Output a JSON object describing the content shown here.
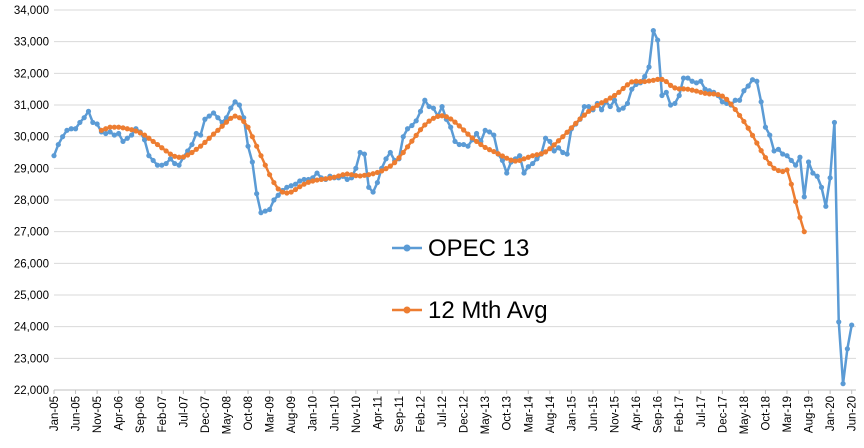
{
  "chart_data": {
    "type": "line",
    "title": "",
    "xlabel": "",
    "ylabel": "",
    "ylim": [
      22000,
      34000
    ],
    "yticks": [
      22000,
      23000,
      24000,
      25000,
      26000,
      27000,
      28000,
      29000,
      30000,
      31000,
      32000,
      33000,
      34000
    ],
    "ytick_labels": [
      "22,000",
      "23,000",
      "24,000",
      "25,000",
      "26,000",
      "27,000",
      "28,000",
      "29,000",
      "30,000",
      "31,000",
      "32,000",
      "33,000",
      "34,000"
    ],
    "grid": "horizontal",
    "legend_position": "center",
    "x_start": "Jan-05",
    "x_end": "Jul-20",
    "x_tick_labels": [
      "Jan-05",
      "Jun-05",
      "Nov-05",
      "Apr-06",
      "Sep-06",
      "Feb-07",
      "Jul-07",
      "Dec-07",
      "May-08",
      "Oct-08",
      "Mar-09",
      "Aug-09",
      "Jan-10",
      "Jun-10",
      "Nov-10",
      "Apr-11",
      "Sep-11",
      "Feb-12",
      "Jul-12",
      "Dec-12",
      "May-13",
      "Oct-13",
      "Mar-14",
      "Aug-14",
      "Jan-15",
      "Jun-15",
      "Nov-15",
      "Apr-16",
      "Sep-16",
      "Feb-17",
      "Jul-17",
      "Dec-17",
      "May-18",
      "Oct-18",
      "Mar-19",
      "Aug-19",
      "Jan-20",
      "Jun-20"
    ],
    "series": [
      {
        "name": "OPEC 13",
        "color": "#5B9BD5",
        "start": "Jan-05",
        "values": [
          29400,
          29750,
          30000,
          30200,
          30250,
          30250,
          30450,
          30600,
          30800,
          30450,
          30400,
          30150,
          30100,
          30150,
          30050,
          30100,
          29850,
          29950,
          30050,
          30250,
          30150,
          29900,
          29400,
          29250,
          29100,
          29100,
          29150,
          29300,
          29150,
          29100,
          29350,
          29550,
          29750,
          30100,
          30050,
          30550,
          30650,
          30750,
          30600,
          30450,
          30600,
          30900,
          31100,
          31000,
          30600,
          29700,
          29200,
          28200,
          27600,
          27650,
          27700,
          28000,
          28150,
          28300,
          28400,
          28450,
          28500,
          28600,
          28650,
          28650,
          28700,
          28850,
          28700,
          28650,
          28750,
          28700,
          28700,
          28750,
          28650,
          28700,
          29000,
          29500,
          29450,
          28400,
          28250,
          28550,
          29000,
          29300,
          29500,
          29250,
          29300,
          30000,
          30250,
          30350,
          30500,
          30800,
          31150,
          30950,
          30900,
          30650,
          30950,
          30550,
          30300,
          29850,
          29750,
          29750,
          29700,
          29900,
          30100,
          29850,
          30200,
          30150,
          30050,
          29450,
          29250,
          28850,
          29200,
          29300,
          29400,
          28850,
          29050,
          29150,
          29300,
          29450,
          29950,
          29850,
          29550,
          29650,
          29500,
          29450,
          30250,
          30400,
          30550,
          30950,
          30950,
          30850,
          31050,
          30850,
          31100,
          30950,
          31150,
          30850,
          30900,
          31050,
          31500,
          31650,
          31700,
          31900,
          32200,
          33350,
          33050,
          31300,
          31400,
          31000,
          31050,
          31300,
          31850,
          31850,
          31750,
          31700,
          31750,
          31500,
          31450,
          31400,
          31300,
          31100,
          31050,
          31000,
          31150,
          31150,
          31450,
          31600,
          31800,
          31750,
          31100,
          30300,
          30050,
          29550,
          29600,
          29450,
          29400,
          29250,
          29100,
          29350,
          28100,
          29200,
          28850,
          28750,
          28400,
          27800,
          28700,
          30450,
          24150,
          22200,
          23300,
          24050
        ]
      },
      {
        "name": "12 Mth Avg",
        "color": "#ED7D31",
        "start": "Dec-05",
        "values": [
          30200,
          30250,
          30300,
          30300,
          30300,
          30280,
          30250,
          30220,
          30180,
          30120,
          30050,
          29950,
          29850,
          29750,
          29650,
          29550,
          29450,
          29380,
          29350,
          29360,
          29420,
          29500,
          29600,
          29700,
          29820,
          29950,
          30080,
          30200,
          30330,
          30460,
          30580,
          30650,
          30600,
          30480,
          30300,
          30000,
          29700,
          29400,
          29100,
          28800,
          28550,
          28350,
          28250,
          28220,
          28250,
          28330,
          28420,
          28500,
          28560,
          28600,
          28630,
          28650,
          28670,
          28690,
          28720,
          28760,
          28800,
          28820,
          28800,
          28770,
          28760,
          28780,
          28800,
          28830,
          28870,
          28920,
          28990,
          29070,
          29180,
          29330,
          29500,
          29680,
          29860,
          30040,
          30220,
          30370,
          30490,
          30580,
          30640,
          30660,
          30630,
          30560,
          30460,
          30340,
          30210,
          30080,
          29960,
          29850,
          29750,
          29660,
          29590,
          29530,
          29460,
          29390,
          29320,
          29260,
          29230,
          29250,
          29300,
          29350,
          29400,
          29430,
          29460,
          29520,
          29620,
          29740,
          29870,
          30000,
          30140,
          30280,
          30420,
          30560,
          30680,
          30800,
          30900,
          30990,
          31070,
          31140,
          31220,
          31300,
          31400,
          31520,
          31640,
          31730,
          31750,
          31740,
          31740,
          31760,
          31780,
          31810,
          31810,
          31740,
          31620,
          31540,
          31510,
          31510,
          31500,
          31470,
          31440,
          31400,
          31370,
          31350,
          31350,
          31330,
          31280,
          31180,
          31030,
          30860,
          30670,
          30480,
          30270,
          30040,
          29800,
          29560,
          29340,
          29150,
          29000,
          28930,
          28900,
          28950,
          28500,
          27950,
          27450,
          27000
        ]
      }
    ]
  }
}
